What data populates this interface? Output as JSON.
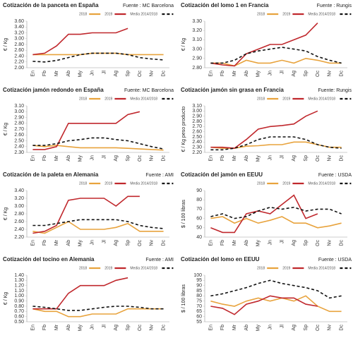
{
  "chart_data": [
    {
      "type": "line",
      "title": "Cotización de la panceta en España",
      "source": "Fuente : MC Barcelona",
      "y_label": "€ / Kg",
      "categories": [
        "En",
        "Fb",
        "Mr",
        "Ab",
        "My",
        "Jn",
        "Jl",
        "Ag",
        "Sp",
        "Oc",
        "Nv",
        "Dc"
      ],
      "ylim": [
        2.0,
        3.6
      ],
      "yticks": [
        {
          "value": 2.0,
          "label": "2.00"
        },
        {
          "value": 2.2,
          "label": "2.20"
        },
        {
          "value": 2.4,
          "label": "2.40"
        },
        {
          "value": 2.6,
          "label": "2.60"
        },
        {
          "value": 2.8,
          "label": "2.80"
        },
        {
          "value": 3.0,
          "label": "3.00"
        },
        {
          "value": 3.2,
          "label": "3.20"
        },
        {
          "value": 3.4,
          "label": "3.40"
        },
        {
          "value": 3.6,
          "label": "3.60"
        }
      ],
      "grid": false,
      "series": [
        {
          "name": "2018",
          "color": "#e8a33d",
          "dashed": false,
          "values": [
            2.45,
            2.45,
            2.45,
            2.45,
            2.45,
            2.5,
            2.5,
            2.5,
            2.45,
            2.45,
            2.45,
            2.45
          ]
        },
        {
          "name": "2019",
          "color": "#c0282d",
          "dashed": false,
          "values": [
            2.45,
            2.5,
            2.75,
            3.15,
            3.15,
            3.2,
            3.2,
            3.2,
            3.35,
            null,
            null,
            null
          ]
        },
        {
          "name": "Media 2014/2018",
          "color": "#111111",
          "dashed": true,
          "values": [
            2.22,
            2.2,
            2.25,
            2.35,
            2.45,
            2.5,
            2.5,
            2.5,
            2.45,
            2.35,
            2.3,
            2.27
          ]
        }
      ]
    },
    {
      "type": "line",
      "title": "Cotización jamón redondo en España",
      "source": "Fuente: MC Barcelona",
      "y_label": "€ / Kg",
      "categories": [
        "En",
        "Fb",
        "Mr",
        "Ab",
        "My",
        "Jn",
        "Jl",
        "Ag",
        "Sp",
        "Oc",
        "Nv",
        "Dc"
      ],
      "ylim": [
        2.3,
        3.1
      ],
      "yticks": [
        {
          "value": 2.3,
          "label": "2.30"
        },
        {
          "value": 2.4,
          "label": "2.40"
        },
        {
          "value": 2.5,
          "label": "2.50"
        },
        {
          "value": 2.6,
          "label": "2.60"
        },
        {
          "value": 2.7,
          "label": "2.70"
        },
        {
          "value": 2.8,
          "label": "2.80"
        },
        {
          "value": 2.9,
          "label": "2.90"
        },
        {
          "value": 3.0,
          "label": "3.00"
        },
        {
          "value": 3.1,
          "label": "3.10"
        }
      ],
      "grid": false,
      "series": [
        {
          "name": "2018",
          "color": "#e8a33d",
          "dashed": false,
          "values": [
            2.42,
            2.4,
            2.42,
            2.4,
            2.38,
            2.38,
            2.38,
            2.38,
            2.37,
            2.36,
            2.35,
            2.34
          ]
        },
        {
          "name": "2019",
          "color": "#c0282d",
          "dashed": false,
          "values": [
            2.35,
            2.35,
            2.4,
            2.8,
            2.8,
            2.8,
            2.8,
            2.8,
            2.95,
            3.0,
            null,
            null
          ]
        },
        {
          "name": "Media 2014/2018",
          "color": "#111111",
          "dashed": true,
          "values": [
            2.42,
            2.42,
            2.45,
            2.5,
            2.52,
            2.55,
            2.55,
            2.52,
            2.5,
            2.45,
            2.4,
            2.36
          ]
        }
      ]
    },
    {
      "type": "line",
      "title": "Cotización de la paleta en Alemania",
      "source": "Fuente : AMI",
      "y_label": "€ / Kg",
      "categories": [
        "En",
        "Fb",
        "Mr",
        "Ab",
        "My",
        "Jn",
        "Jl",
        "Ag",
        "Sp",
        "Oc",
        "Nv",
        "Dc"
      ],
      "ylim": [
        2.2,
        3.4
      ],
      "yticks": [
        {
          "value": 2.2,
          "label": "2.20"
        },
        {
          "value": 2.4,
          "label": "2.40"
        },
        {
          "value": 2.6,
          "label": "2.60"
        },
        {
          "value": 2.8,
          "label": "2.80"
        },
        {
          "value": 3.0,
          "label": "3.00"
        },
        {
          "value": 3.2,
          "label": "3.20"
        },
        {
          "value": 3.4,
          "label": "3.40"
        }
      ],
      "grid": false,
      "series": [
        {
          "name": "2018",
          "color": "#e8a33d",
          "dashed": false,
          "values": [
            2.35,
            2.3,
            2.45,
            2.6,
            2.4,
            2.4,
            2.4,
            2.45,
            2.55,
            2.35,
            2.35,
            2.35
          ]
        },
        {
          "name": "2019",
          "color": "#c0282d",
          "dashed": false,
          "values": [
            2.3,
            2.35,
            2.5,
            3.15,
            3.2,
            3.2,
            3.2,
            3.0,
            3.25,
            3.25,
            null,
            null
          ]
        },
        {
          "name": "Media 2014/2018",
          "color": "#111111",
          "dashed": true,
          "values": [
            2.5,
            2.5,
            2.55,
            2.6,
            2.65,
            2.65,
            2.65,
            2.65,
            2.6,
            2.5,
            2.45,
            2.42
          ]
        }
      ]
    },
    {
      "type": "line",
      "title": "Cotización del tocino en Alemania",
      "source": "Fuente : AMI",
      "y_label": "€ / Kg",
      "categories": [
        "En",
        "Fb",
        "Mr",
        "Ab",
        "My",
        "Jn",
        "Jl",
        "Ag",
        "Sp",
        "Oc",
        "Nv",
        "Dc"
      ],
      "ylim": [
        0.5,
        1.4
      ],
      "yticks": [
        {
          "value": 0.5,
          "label": "0.50"
        },
        {
          "value": 0.6,
          "label": "0.60"
        },
        {
          "value": 0.7,
          "label": "0.70"
        },
        {
          "value": 0.8,
          "label": "0.80"
        },
        {
          "value": 0.9,
          "label": "0.90"
        },
        {
          "value": 1.0,
          "label": "1.00"
        },
        {
          "value": 1.1,
          "label": "1.10"
        },
        {
          "value": 1.2,
          "label": "1.20"
        },
        {
          "value": 1.3,
          "label": "1.30"
        },
        {
          "value": 1.4,
          "label": "1.40"
        }
      ],
      "grid": false,
      "series": [
        {
          "name": "2018",
          "color": "#e8a33d",
          "dashed": false,
          "values": [
            0.75,
            0.7,
            0.7,
            0.6,
            0.6,
            0.65,
            0.65,
            0.65,
            0.75,
            0.75,
            0.75,
            0.75
          ]
        },
        {
          "name": "2019",
          "color": "#c0282d",
          "dashed": false,
          "values": [
            0.75,
            0.75,
            0.75,
            1.05,
            1.2,
            1.2,
            1.2,
            1.3,
            1.35,
            null,
            null,
            null
          ]
        },
        {
          "name": "Media 2014/2018",
          "color": "#111111",
          "dashed": true,
          "values": [
            0.8,
            0.78,
            0.75,
            0.72,
            0.72,
            0.75,
            0.78,
            0.8,
            0.8,
            0.78,
            0.75,
            0.75
          ]
        }
      ]
    },
    {
      "type": "line",
      "title": "Cotización del lomo 1 en Francia",
      "source": "Fuente : Rungis",
      "y_label": "€ / Kg",
      "categories": [
        "En",
        "Fb",
        "Mr",
        "Ab",
        "My",
        "Jn",
        "Jl",
        "Ag",
        "Sp",
        "Oc",
        "Nv",
        "Dc"
      ],
      "ylim": [
        2.8,
        3.3
      ],
      "yticks": [
        {
          "value": 2.8,
          "label": "2.80"
        },
        {
          "value": 2.9,
          "label": "2.90"
        },
        {
          "value": 3.0,
          "label": "3.00"
        },
        {
          "value": 3.1,
          "label": "3.10"
        },
        {
          "value": 3.2,
          "label": "3.20"
        },
        {
          "value": 3.3,
          "label": "3.30"
        }
      ],
      "grid": false,
      "series": [
        {
          "name": "2018",
          "color": "#e8a33d",
          "dashed": false,
          "values": [
            2.85,
            2.85,
            2.82,
            2.88,
            2.85,
            2.85,
            2.88,
            2.85,
            2.9,
            2.88,
            2.85,
            2.85
          ]
        },
        {
          "name": "2019",
          "color": "#c0282d",
          "dashed": false,
          "values": [
            2.85,
            2.83,
            2.82,
            2.95,
            3.0,
            3.05,
            3.05,
            3.1,
            3.15,
            3.28,
            null,
            null
          ]
        },
        {
          "name": "Media 2014/2018",
          "color": "#111111",
          "dashed": true,
          "values": [
            2.85,
            2.85,
            2.88,
            2.95,
            2.98,
            3.0,
            3.02,
            3.0,
            2.98,
            2.92,
            2.88,
            2.85
          ]
        }
      ]
    },
    {
      "type": "line",
      "title": "Cotización jamón sin grasa en Francia",
      "source": "Fuente: Rungis",
      "y_label": "€ / Kg peso producto",
      "categories": [
        "En",
        "Fb",
        "Mr",
        "Ab",
        "My",
        "Jn",
        "Jl",
        "Ag",
        "Sp",
        "Oc",
        "Nv",
        "Dc"
      ],
      "ylim": [
        2.2,
        3.1
      ],
      "yticks": [
        {
          "value": 2.2,
          "label": "2.20"
        },
        {
          "value": 2.3,
          "label": "2.30"
        },
        {
          "value": 2.4,
          "label": "2.40"
        },
        {
          "value": 2.5,
          "label": "2.50"
        },
        {
          "value": 2.6,
          "label": "2.60"
        },
        {
          "value": 2.7,
          "label": "2.70"
        },
        {
          "value": 2.8,
          "label": "2.80"
        },
        {
          "value": 2.9,
          "label": "2.90"
        },
        {
          "value": 3.0,
          "label": "3.00"
        },
        {
          "value": 3.1,
          "label": "3.10"
        }
      ],
      "grid": false,
      "series": [
        {
          "name": "2018",
          "color": "#e8a33d",
          "dashed": false,
          "values": [
            2.3,
            2.28,
            2.28,
            2.32,
            2.33,
            2.35,
            2.35,
            2.4,
            2.4,
            2.35,
            2.3,
            2.3
          ]
        },
        {
          "name": "2019",
          "color": "#c0282d",
          "dashed": false,
          "values": [
            2.3,
            2.3,
            2.28,
            2.45,
            2.65,
            2.7,
            2.72,
            2.75,
            2.9,
            3.0,
            null,
            null
          ]
        },
        {
          "name": "Media 2014/2018",
          "color": "#111111",
          "dashed": true,
          "values": [
            2.25,
            2.25,
            2.28,
            2.35,
            2.45,
            2.5,
            2.5,
            2.5,
            2.45,
            2.35,
            2.3,
            2.28
          ]
        }
      ]
    },
    {
      "type": "line",
      "title": "Cotización del jamón en EEUU",
      "source": "Fuente : USDA",
      "y_label": "$ / 100 libras",
      "categories": [
        "En",
        "Fb",
        "Mr",
        "Ab",
        "My",
        "Jn",
        "Jl",
        "Ag",
        "Sp",
        "Oc",
        "Nv",
        "Dc"
      ],
      "ylim": [
        40,
        90
      ],
      "yticks": [
        40,
        50,
        60,
        70,
        80,
        90
      ],
      "grid": false,
      "series": [
        {
          "name": "2018",
          "color": "#e8a33d",
          "dashed": false,
          "values": [
            60,
            62,
            55,
            60,
            55,
            58,
            62,
            55,
            55,
            50,
            52,
            55
          ]
        },
        {
          "name": "2019",
          "color": "#c0282d",
          "dashed": false,
          "values": [
            50,
            45,
            45,
            65,
            68,
            65,
            75,
            85,
            60,
            65,
            null,
            null
          ]
        },
        {
          "name": "Media 2014/2018",
          "color": "#111111",
          "dashed": true,
          "values": [
            62,
            65,
            60,
            62,
            68,
            72,
            70,
            72,
            68,
            70,
            70,
            65
          ]
        }
      ]
    },
    {
      "type": "line",
      "title": "Cotización del lomo en EEUU",
      "source": "Fuente : USDA",
      "y_label": "$ / 100 libras",
      "categories": [
        "En",
        "Fb",
        "Mr",
        "Ab",
        "My",
        "Jn",
        "Jl",
        "Ag",
        "Sp",
        "Oc",
        "Nv",
        "Dc"
      ],
      "ylim": [
        55,
        100
      ],
      "yticks": [
        55,
        60,
        65,
        70,
        75,
        80,
        85,
        90,
        95,
        100
      ],
      "grid": false,
      "series": [
        {
          "name": "2018",
          "color": "#e8a33d",
          "dashed": false,
          "values": [
            75,
            72,
            70,
            75,
            78,
            75,
            78,
            75,
            80,
            70,
            65,
            65
          ]
        },
        {
          "name": "2019",
          "color": "#c0282d",
          "dashed": false,
          "values": [
            70,
            68,
            62,
            72,
            75,
            80,
            78,
            78,
            72,
            70,
            null,
            null
          ]
        },
        {
          "name": "Media 2014/2018",
          "color": "#111111",
          "dashed": true,
          "values": [
            80,
            82,
            85,
            88,
            92,
            95,
            92,
            90,
            88,
            85,
            78,
            80
          ]
        }
      ]
    }
  ]
}
